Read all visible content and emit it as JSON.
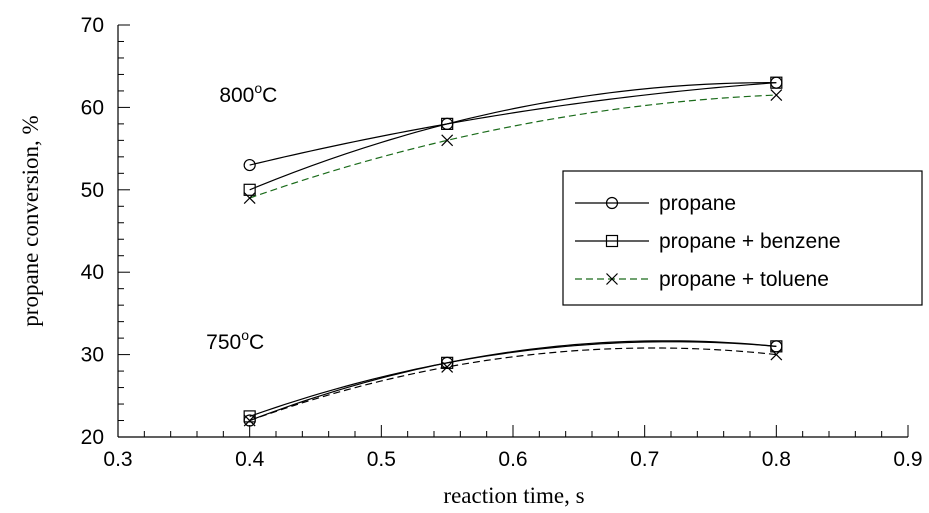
{
  "chart_data": {
    "type": "line",
    "xlabel": "reaction time, s",
    "ylabel": "propane  conversion, %",
    "xlim": [
      0.3,
      0.9
    ],
    "ylim": [
      20,
      70
    ],
    "x_ticks": [
      0.3,
      0.4,
      0.5,
      0.6,
      0.7,
      0.8,
      0.9
    ],
    "y_ticks": [
      20,
      30,
      40,
      50,
      60,
      70
    ],
    "x_tick_labels": [
      "0.3",
      "0.4",
      "0.5",
      "0.6",
      "0.7",
      "0.8",
      "0.9"
    ],
    "y_tick_labels": [
      "20",
      "30",
      "40",
      "50",
      "60",
      "70"
    ],
    "grid": false,
    "legend_position": "right",
    "annotations": [
      {
        "text_main": "800",
        "text_sup": "o",
        "text_unit": "C",
        "x": 0.38,
        "y": 61.5
      },
      {
        "text_main": "750",
        "text_sup": "o",
        "text_unit": "C",
        "x": 0.37,
        "y": 31.5
      }
    ],
    "series": [
      {
        "name": "propane",
        "marker": "circle",
        "dash": "solid",
        "color": "#000000",
        "group": "800",
        "x": [
          0.4,
          0.55,
          0.8
        ],
        "y": [
          53,
          58,
          63
        ]
      },
      {
        "name": "propane + benzene",
        "marker": "square",
        "dash": "solid",
        "color": "#000000",
        "group": "800",
        "x": [
          0.4,
          0.55,
          0.8
        ],
        "y": [
          50,
          58,
          63
        ]
      },
      {
        "name": "propane + toluene",
        "marker": "x",
        "dash": "dashed",
        "color": "#1a6b1a",
        "group": "800",
        "x": [
          0.4,
          0.55,
          0.8
        ],
        "y": [
          49,
          56,
          61.5
        ]
      },
      {
        "name": "propane",
        "marker": "circle",
        "dash": "solid",
        "color": "#000000",
        "group": "750",
        "x": [
          0.4,
          0.55,
          0.8
        ],
        "y": [
          22,
          29,
          31
        ]
      },
      {
        "name": "propane + benzene",
        "marker": "square",
        "dash": "solid",
        "color": "#000000",
        "group": "750",
        "x": [
          0.4,
          0.55,
          0.8
        ],
        "y": [
          22.5,
          29,
          31
        ]
      },
      {
        "name": "propane + toluene",
        "marker": "x",
        "dash": "dashed",
        "color": "#000000",
        "group": "750",
        "x": [
          0.4,
          0.55,
          0.8
        ],
        "y": [
          22,
          28.5,
          30
        ]
      }
    ],
    "legend": [
      {
        "label": "propane",
        "marker": "circle",
        "dash": "solid",
        "color": "#000000"
      },
      {
        "label": "propane + benzene",
        "marker": "square",
        "dash": "solid",
        "color": "#000000"
      },
      {
        "label": "propane + toluene",
        "marker": "x",
        "dash": "dashed",
        "color": "#1a6b1a"
      }
    ]
  }
}
